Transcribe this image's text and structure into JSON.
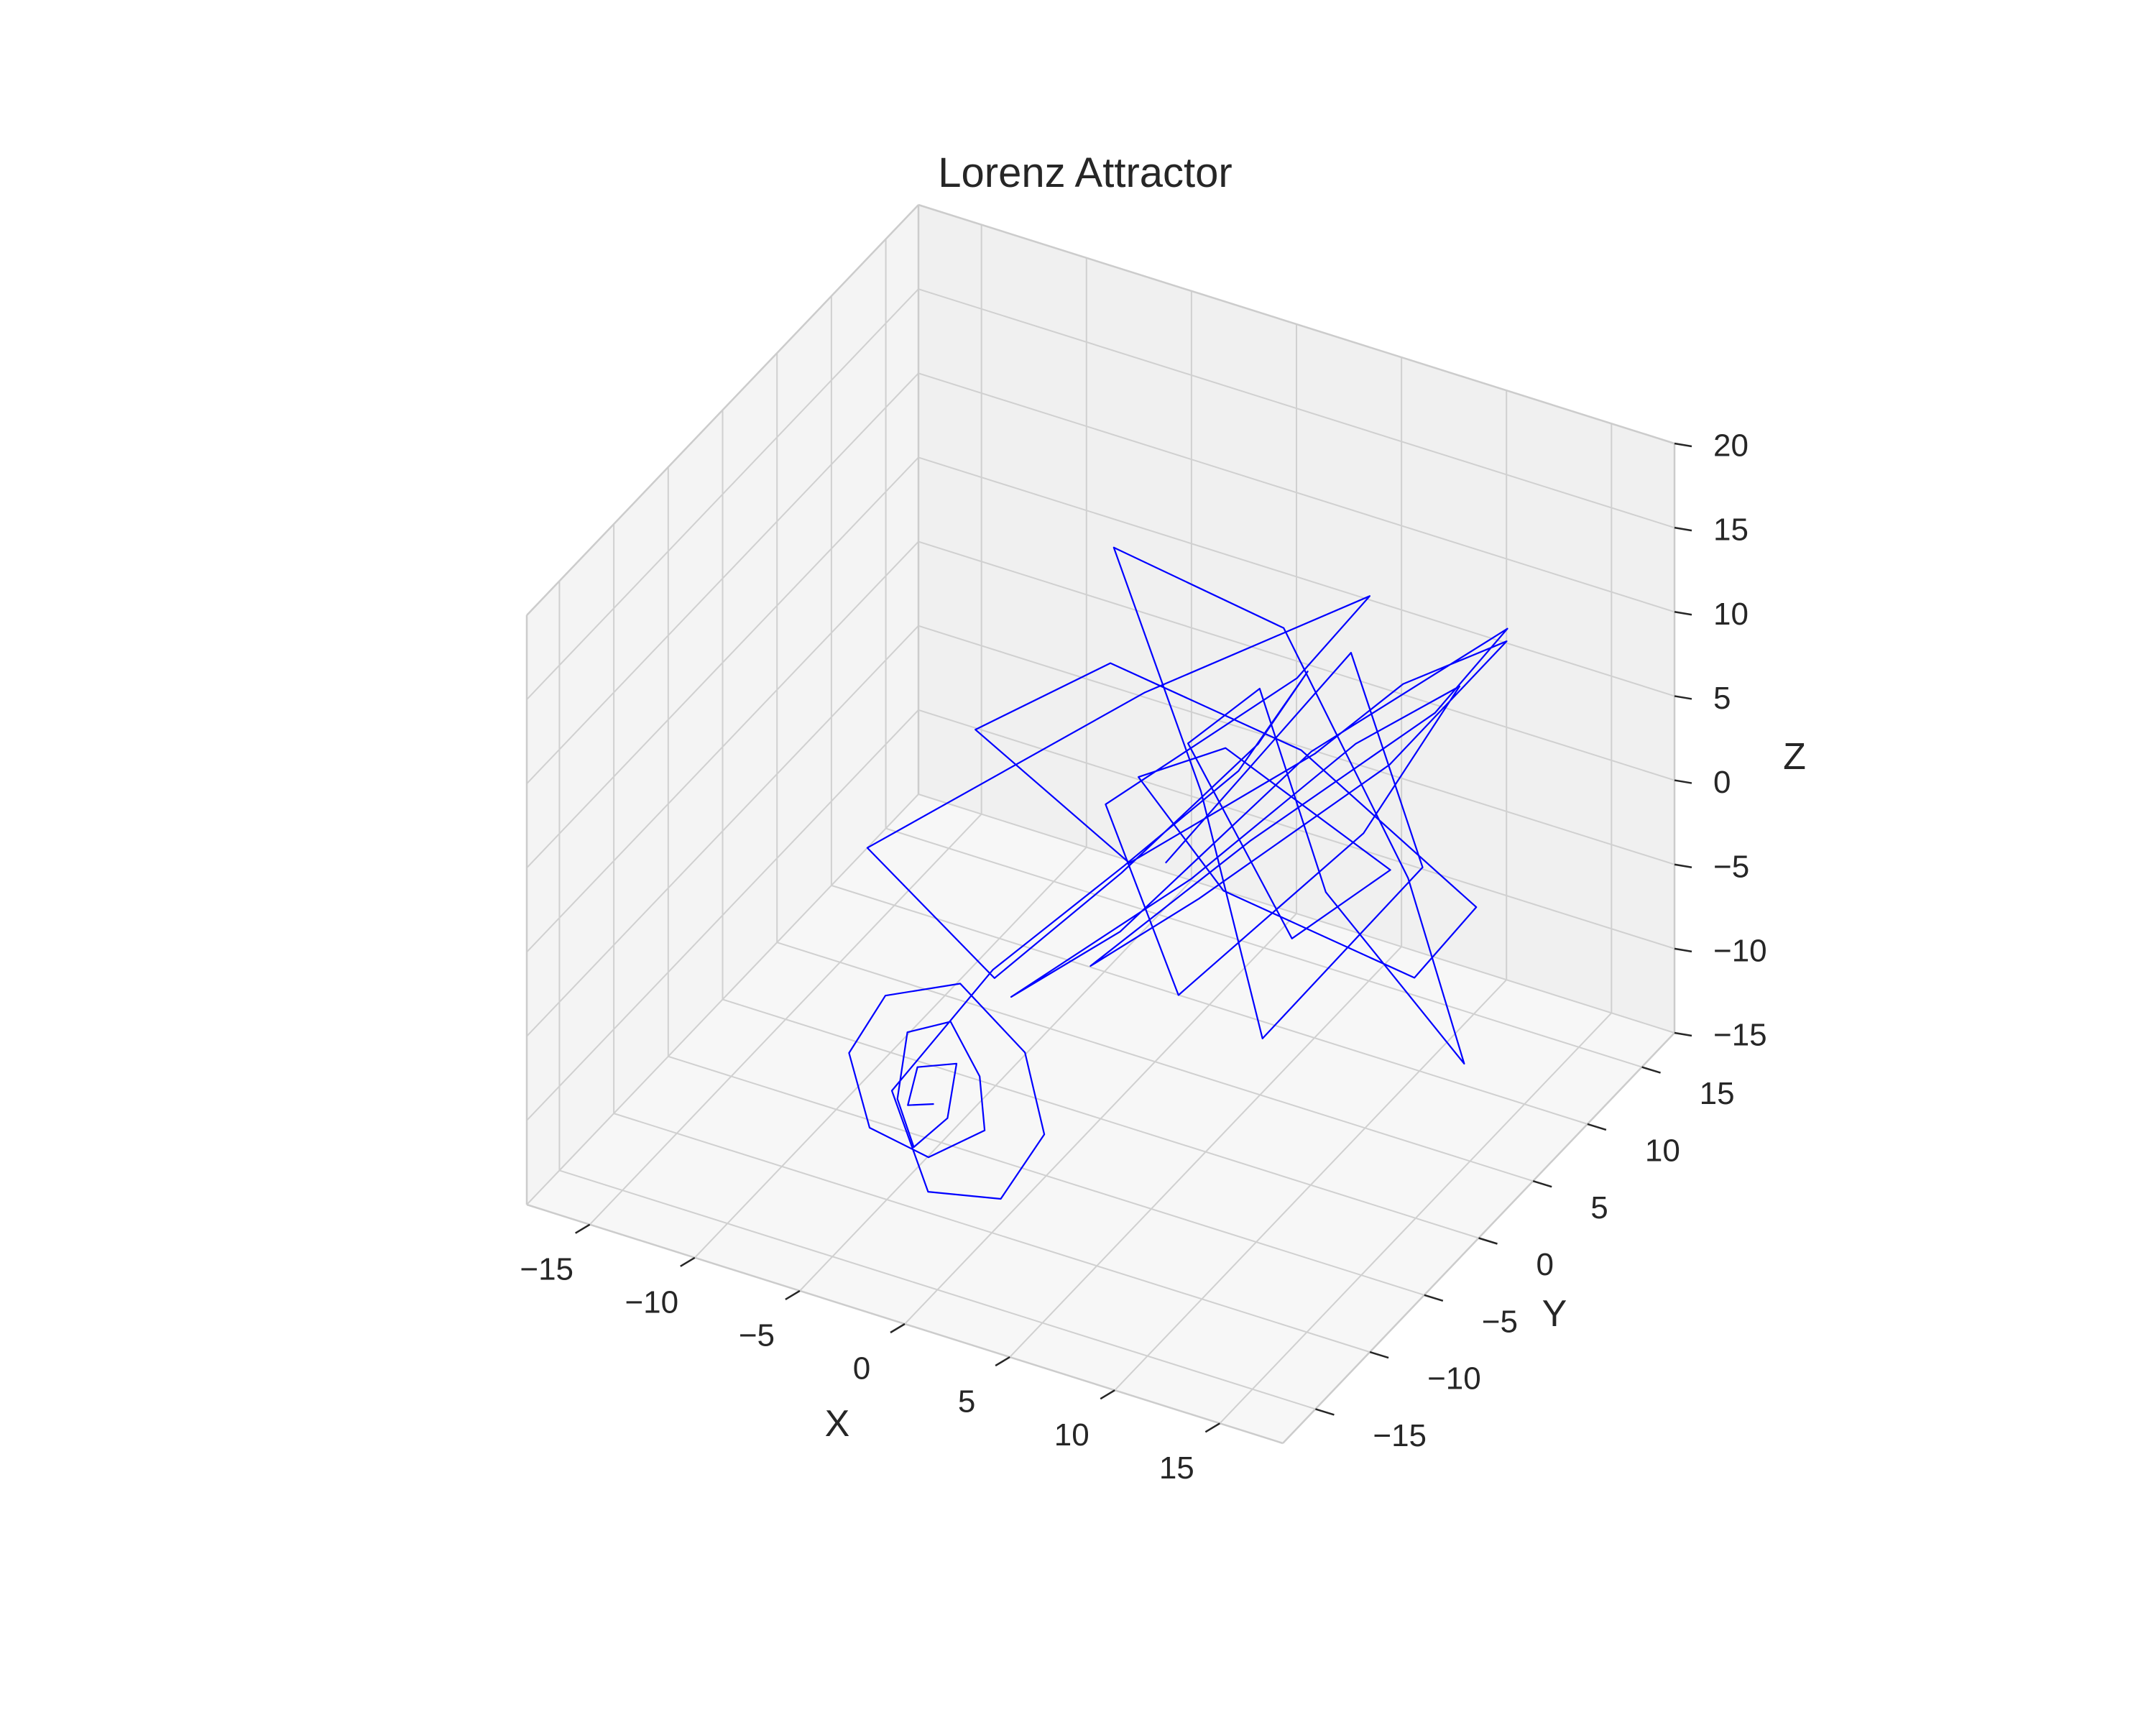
{
  "chart_data": {
    "type": "line3d",
    "title": "Lorenz Attractor",
    "xlabel": "X",
    "ylabel": "Y",
    "zlabel": "Z",
    "xlim": [
      -18,
      18
    ],
    "ylim": [
      -18,
      18
    ],
    "zlim": [
      -15,
      20
    ],
    "xticks": [
      -15,
      -10,
      -5,
      0,
      5,
      10,
      15
    ],
    "yticks": [
      -15,
      -10,
      -5,
      0,
      5,
      10,
      15
    ],
    "zticks": [
      -15,
      -10,
      -5,
      0,
      5,
      10,
      15,
      20
    ],
    "xtick_labels": [
      "−15",
      "−10",
      "−5",
      "0",
      "5",
      "10",
      "15"
    ],
    "ytick_labels": [
      "−15",
      "−10",
      "−5",
      "0",
      "5",
      "10",
      "15"
    ],
    "ztick_labels": [
      "−15",
      "−10",
      "−5",
      "0",
      "5",
      "10",
      "15",
      "20"
    ],
    "line_color": "#0000ff",
    "pane_colors": {
      "back": "#f0f0f0",
      "left": "#f4f4f4",
      "floor": "#f7f7f7"
    },
    "series": [
      {
        "color": "#0000ff",
        "x": [
          -2.5,
          -4.0,
          -3.8,
          -2.2,
          -1.8,
          -3.2,
          -4.6,
          -4.8,
          -3.0,
          -1.2,
          -0.6,
          -2.6,
          -5.2,
          -6.8,
          -6.0,
          -2.8,
          0.8,
          2.6,
          1.2,
          -2.0,
          -4.5,
          -1.5,
          3.2,
          7.6,
          9.6,
          6.2,
          1.0,
          -3.5,
          -8.0,
          2.6,
          11.0,
          6.5,
          -0.8,
          5.0,
          12.0,
          14.5,
          8.0,
          2.0,
          -4.0,
          3.0,
          9.0,
          16.0,
          11.0,
          4.0,
          -1.0,
          6.5,
          13.5,
          17.0,
          10.0,
          4.5,
          -2.0,
          -7.0,
          1.5,
          8.0,
          14.0,
          9.5,
          3.0,
          1.8,
          7.5,
          12.5,
          6.0,
          -0.5,
          5.5,
          11.5,
          15.5,
          10.5,
          2.5,
          -3.0,
          4.0,
          9.0,
          13.0,
          7.0,
          0.5
        ],
        "y": [
          -10.5,
          -10.0,
          -9.5,
          -9.0,
          -10.6,
          -11.0,
          -9.8,
          -8.5,
          -8.0,
          -8.8,
          -9.5,
          -10.8,
          -11.2,
          -10.0,
          -8.2,
          -7.5,
          -8.5,
          -10.2,
          -11.5,
          -12.0,
          -10.5,
          -7.0,
          -4.0,
          -2.0,
          0.5,
          2.5,
          0.0,
          -3.0,
          -6.0,
          -1.0,
          3.5,
          5.5,
          2.0,
          -2.5,
          1.0,
          5.0,
          8.0,
          4.5,
          -0.5,
          -4.0,
          2.0,
          6.5,
          9.5,
          6.0,
          1.0,
          -3.5,
          0.5,
          4.5,
          8.5,
          11.0,
          6.5,
          2.0,
          -2.0,
          3.0,
          7.5,
          10.5,
          5.5,
          0.0,
          -3.0,
          2.5,
          6.0,
          9.0,
          4.0,
          -1.5,
          3.5,
          8.0,
          12.0,
          7.0,
          1.5,
          -2.5,
          4.5,
          9.5,
          5.0
        ],
        "z": [
          -8.0,
          -9.0,
          -7.0,
          -6.5,
          -8.5,
          -10.5,
          -9.0,
          -6.0,
          -5.0,
          -7.0,
          -9.5,
          -11.0,
          -10.0,
          -7.0,
          -4.5,
          -3.0,
          -5.0,
          -8.0,
          -11.5,
          -12.0,
          -8.0,
          -2.0,
          4.0,
          10.0,
          15.0,
          8.0,
          0.0,
          -6.0,
          2.0,
          12.0,
          18.0,
          10.0,
          2.0,
          -4.0,
          6.0,
          13.0,
          5.0,
          -3.0,
          -9.0,
          0.0,
          9.0,
          16.0,
          7.0,
          -1.0,
          -7.0,
          3.0,
          11.0,
          17.0,
          9.0,
          1.0,
          -5.0,
          4.0,
          14.0,
          8.0,
          -2.0,
          -10.0,
          -4.0,
          6.0,
          12.0,
          3.0,
          -6.0,
          1.0,
          10.0,
          4.0,
          -8.0,
          -2.0,
          7.0,
          13.0,
          5.0,
          -5.0,
          2.0,
          9.0,
          -3.0
        ]
      }
    ]
  }
}
